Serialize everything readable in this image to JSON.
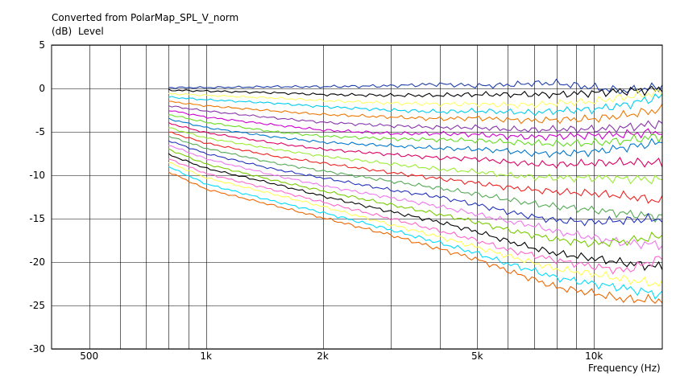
{
  "chart_data": {
    "type": "line",
    "title": "Converted from PolarMap_SPL_V_norm",
    "ylabel_unit": "(dB)",
    "ylabel": "Level",
    "xlabel": "Frequency",
    "xlabel_unit": "(Hz)",
    "x_scale": "log",
    "xlim": [
      400,
      15000
    ],
    "ylim": [
      -30,
      5
    ],
    "grid": true,
    "legend": "none",
    "xticks": [
      500,
      1000,
      2000,
      5000,
      10000
    ],
    "xtick_labels": [
      "500",
      "1k",
      "2k",
      "5k",
      "10k"
    ],
    "yticks": [
      5,
      0,
      -5,
      -10,
      -15,
      -20,
      -25,
      -30
    ],
    "ytick_labels": [
      "5",
      "0",
      "-5",
      "-10",
      "-15",
      "-20",
      "-25",
      "-30"
    ],
    "x": [
      800,
      1000,
      1500,
      2000,
      3000,
      4000,
      5000,
      6000,
      7000,
      8000,
      10000,
      12000,
      15000
    ],
    "series": [
      {
        "color": "#1f3fa8",
        "values": [
          0.1,
          0.1,
          0.2,
          0.2,
          0.3,
          0.5,
          0.3,
          0.4,
          0.6,
          0.6,
          0.1,
          -0.3,
          0.2
        ]
      },
      {
        "color": "#000000",
        "values": [
          -0.2,
          -0.3,
          -0.5,
          -0.7,
          -0.8,
          -0.8,
          -0.7,
          -0.7,
          -0.7,
          -0.7,
          -0.5,
          -0.3,
          -0.1
        ]
      },
      {
        "color": "#ffff66",
        "values": [
          -0.6,
          -0.8,
          -1.1,
          -1.4,
          -1.7,
          -1.8,
          -1.8,
          -1.9,
          -1.9,
          -1.7,
          -1.5,
          -1.0,
          -0.5
        ]
      },
      {
        "color": "#00ccee",
        "values": [
          -1.0,
          -1.3,
          -1.7,
          -2.1,
          -2.5,
          -2.7,
          -2.6,
          -2.7,
          -2.8,
          -2.6,
          -2.4,
          -1.9,
          -0.9
        ]
      },
      {
        "color": "#ee7700",
        "values": [
          -1.5,
          -2.0,
          -2.6,
          -3.0,
          -3.3,
          -3.5,
          -3.4,
          -3.6,
          -3.7,
          -3.6,
          -3.5,
          -3.1,
          -2.4
        ]
      },
      {
        "color": "#8833aa",
        "values": [
          -2.0,
          -2.6,
          -3.4,
          -3.9,
          -4.3,
          -4.5,
          -4.5,
          -4.7,
          -4.8,
          -4.7,
          -4.7,
          -4.5,
          -4.0
        ]
      },
      {
        "color": "#cc00cc",
        "values": [
          -2.5,
          -3.3,
          -4.2,
          -4.8,
          -5.2,
          -5.2,
          -5.3,
          -5.5,
          -5.6,
          -5.5,
          -5.4,
          -5.3,
          -5.0
        ]
      },
      {
        "color": "#66dd22",
        "values": [
          -3.0,
          -3.9,
          -5.0,
          -5.5,
          -5.8,
          -5.9,
          -6.0,
          -6.2,
          -6.3,
          -6.4,
          -6.3,
          -6.0,
          -5.5
        ]
      },
      {
        "color": "#0077cc",
        "values": [
          -3.5,
          -4.5,
          -5.6,
          -6.2,
          -6.6,
          -6.9,
          -7.0,
          -7.2,
          -7.5,
          -7.5,
          -7.3,
          -6.8,
          -6.2
        ]
      },
      {
        "color": "#dd0066",
        "values": [
          -4.0,
          -5.1,
          -6.3,
          -7.0,
          -7.6,
          -8.0,
          -8.1,
          -8.5,
          -8.7,
          -8.8,
          -8.6,
          -8.5,
          -8.6
        ]
      },
      {
        "color": "#99ee33",
        "values": [
          -4.5,
          -5.7,
          -7.0,
          -7.8,
          -8.7,
          -9.3,
          -9.6,
          -10.0,
          -10.2,
          -10.3,
          -10.3,
          -10.4,
          -10.5
        ]
      },
      {
        "color": "#ee2222",
        "values": [
          -5.0,
          -6.3,
          -7.8,
          -8.6,
          -9.7,
          -10.4,
          -10.9,
          -11.4,
          -11.7,
          -11.9,
          -12.1,
          -12.4,
          -13.0
        ]
      },
      {
        "color": "#55aa55",
        "values": [
          -5.5,
          -6.9,
          -8.6,
          -9.5,
          -10.7,
          -11.5,
          -12.2,
          -12.8,
          -13.3,
          -13.6,
          -14.0,
          -14.4,
          -14.8
        ]
      },
      {
        "color": "#2233bb",
        "values": [
          -6.0,
          -7.5,
          -9.3,
          -10.3,
          -11.7,
          -12.5,
          -13.4,
          -14.2,
          -14.8,
          -15.2,
          -15.4,
          -15.2,
          -15.0
        ]
      },
      {
        "color": "#ee77ee",
        "values": [
          -6.5,
          -8.1,
          -10.0,
          -11.2,
          -12.6,
          -13.6,
          -14.5,
          -15.3,
          -15.8,
          -16.5,
          -17.2,
          -17.8,
          -18.0
        ]
      },
      {
        "color": "#77cc00",
        "values": [
          -7.0,
          -8.7,
          -10.6,
          -11.8,
          -13.4,
          -14.5,
          -15.4,
          -16.3,
          -16.9,
          -17.4,
          -17.9,
          -17.6,
          -17.0
        ]
      },
      {
        "color": "#000000",
        "values": [
          -7.6,
          -9.2,
          -11.0,
          -12.4,
          -14.2,
          -15.4,
          -16.5,
          -17.6,
          -18.4,
          -19.0,
          -19.6,
          -20.1,
          -20.6
        ]
      },
      {
        "color": "#ff66cc",
        "values": [
          -8.1,
          -9.8,
          -11.7,
          -13.1,
          -15.0,
          -16.4,
          -17.5,
          -18.6,
          -19.2,
          -19.8,
          -20.5,
          -21.0,
          -19.5
        ]
      },
      {
        "color": "#ffff55",
        "values": [
          -8.5,
          -10.3,
          -12.2,
          -13.6,
          -15.7,
          -17.1,
          -18.3,
          -19.3,
          -20.1,
          -20.8,
          -21.4,
          -22.0,
          -22.6
        ]
      },
      {
        "color": "#00ddff",
        "values": [
          -9.0,
          -11.0,
          -13.0,
          -14.3,
          -16.3,
          -17.8,
          -19.0,
          -20.2,
          -21.0,
          -21.8,
          -22.5,
          -23.0,
          -23.8
        ]
      },
      {
        "color": "#ee6600",
        "values": [
          -9.6,
          -11.6,
          -13.5,
          -14.9,
          -16.9,
          -18.5,
          -19.7,
          -21.0,
          -22.0,
          -22.9,
          -23.6,
          -24.3,
          -24.4
        ]
      }
    ]
  }
}
